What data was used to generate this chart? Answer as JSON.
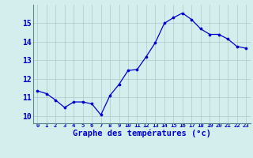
{
  "hours": [
    0,
    1,
    2,
    3,
    4,
    5,
    6,
    7,
    8,
    9,
    10,
    11,
    12,
    13,
    14,
    15,
    16,
    17,
    18,
    19,
    20,
    21,
    22,
    23
  ],
  "temps": [
    11.35,
    11.2,
    10.85,
    10.45,
    10.75,
    10.75,
    10.65,
    10.05,
    11.1,
    11.7,
    12.45,
    12.5,
    13.2,
    13.95,
    15.0,
    15.3,
    15.55,
    15.2,
    14.7,
    14.4,
    14.4,
    14.15,
    13.75,
    13.65
  ],
  "line_color": "#0000cc",
  "marker": "o",
  "marker_size": 2.2,
  "background_color": "#d4eeed",
  "grid_color": "#b0c8c8",
  "xlabel": "Graphe des températures (°c)",
  "ylabel_ticks": [
    10,
    11,
    12,
    13,
    14,
    15
  ],
  "xlim": [
    -0.5,
    23.5
  ],
  "ylim": [
    9.6,
    16.0
  ],
  "tick_color": "#0000cc",
  "label_color": "#0000cc",
  "xlabel_fontsize": 7.5,
  "ylabel_fontsize": 7,
  "xtick_fontsize": 5.2,
  "linewidth": 0.9
}
